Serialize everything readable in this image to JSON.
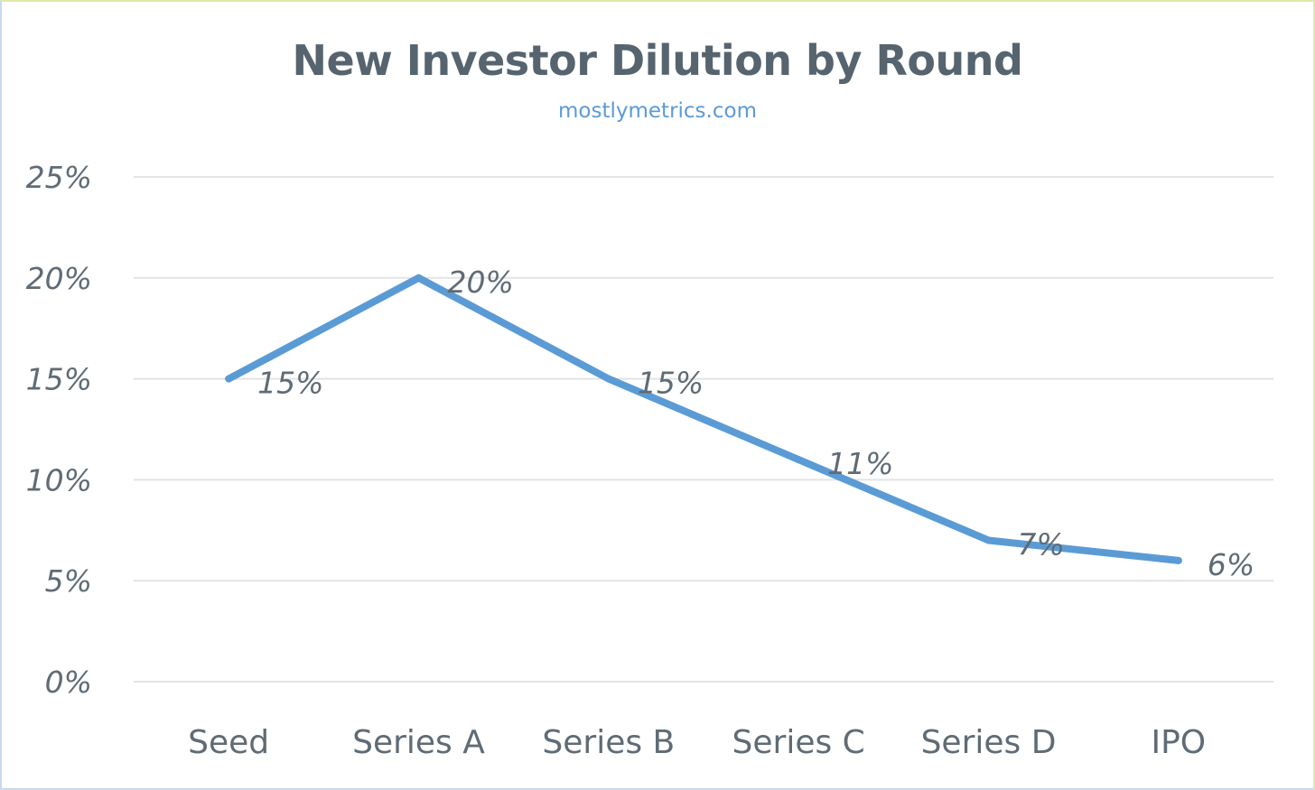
{
  "chart_data": {
    "type": "line",
    "title": "New Investor Dilution by Round",
    "subtitle": "mostlymetrics.com",
    "xlabel": "",
    "ylabel": "",
    "categories": [
      "Seed",
      "Series A",
      "Series B",
      "Series C",
      "Series D",
      "IPO"
    ],
    "series": [
      {
        "values": [
          15,
          20,
          15,
          11,
          7,
          6
        ],
        "data_labels": [
          "15%",
          "20%",
          "15%",
          "11%",
          "7%",
          "6%"
        ]
      }
    ],
    "ylim": [
      0,
      25
    ],
    "y_ticks": [
      0,
      5,
      10,
      15,
      20,
      25
    ],
    "y_tick_labels": [
      "0%",
      "5%",
      "10%",
      "15%",
      "20%",
      "25%"
    ],
    "grid": true,
    "legend": "none",
    "colors": {
      "line": "#5b9bd5",
      "title": "#56646f",
      "subtitle": "#5b9bd5",
      "axis_text": "#5f6b75",
      "grid": "#e3e3e3"
    }
  }
}
